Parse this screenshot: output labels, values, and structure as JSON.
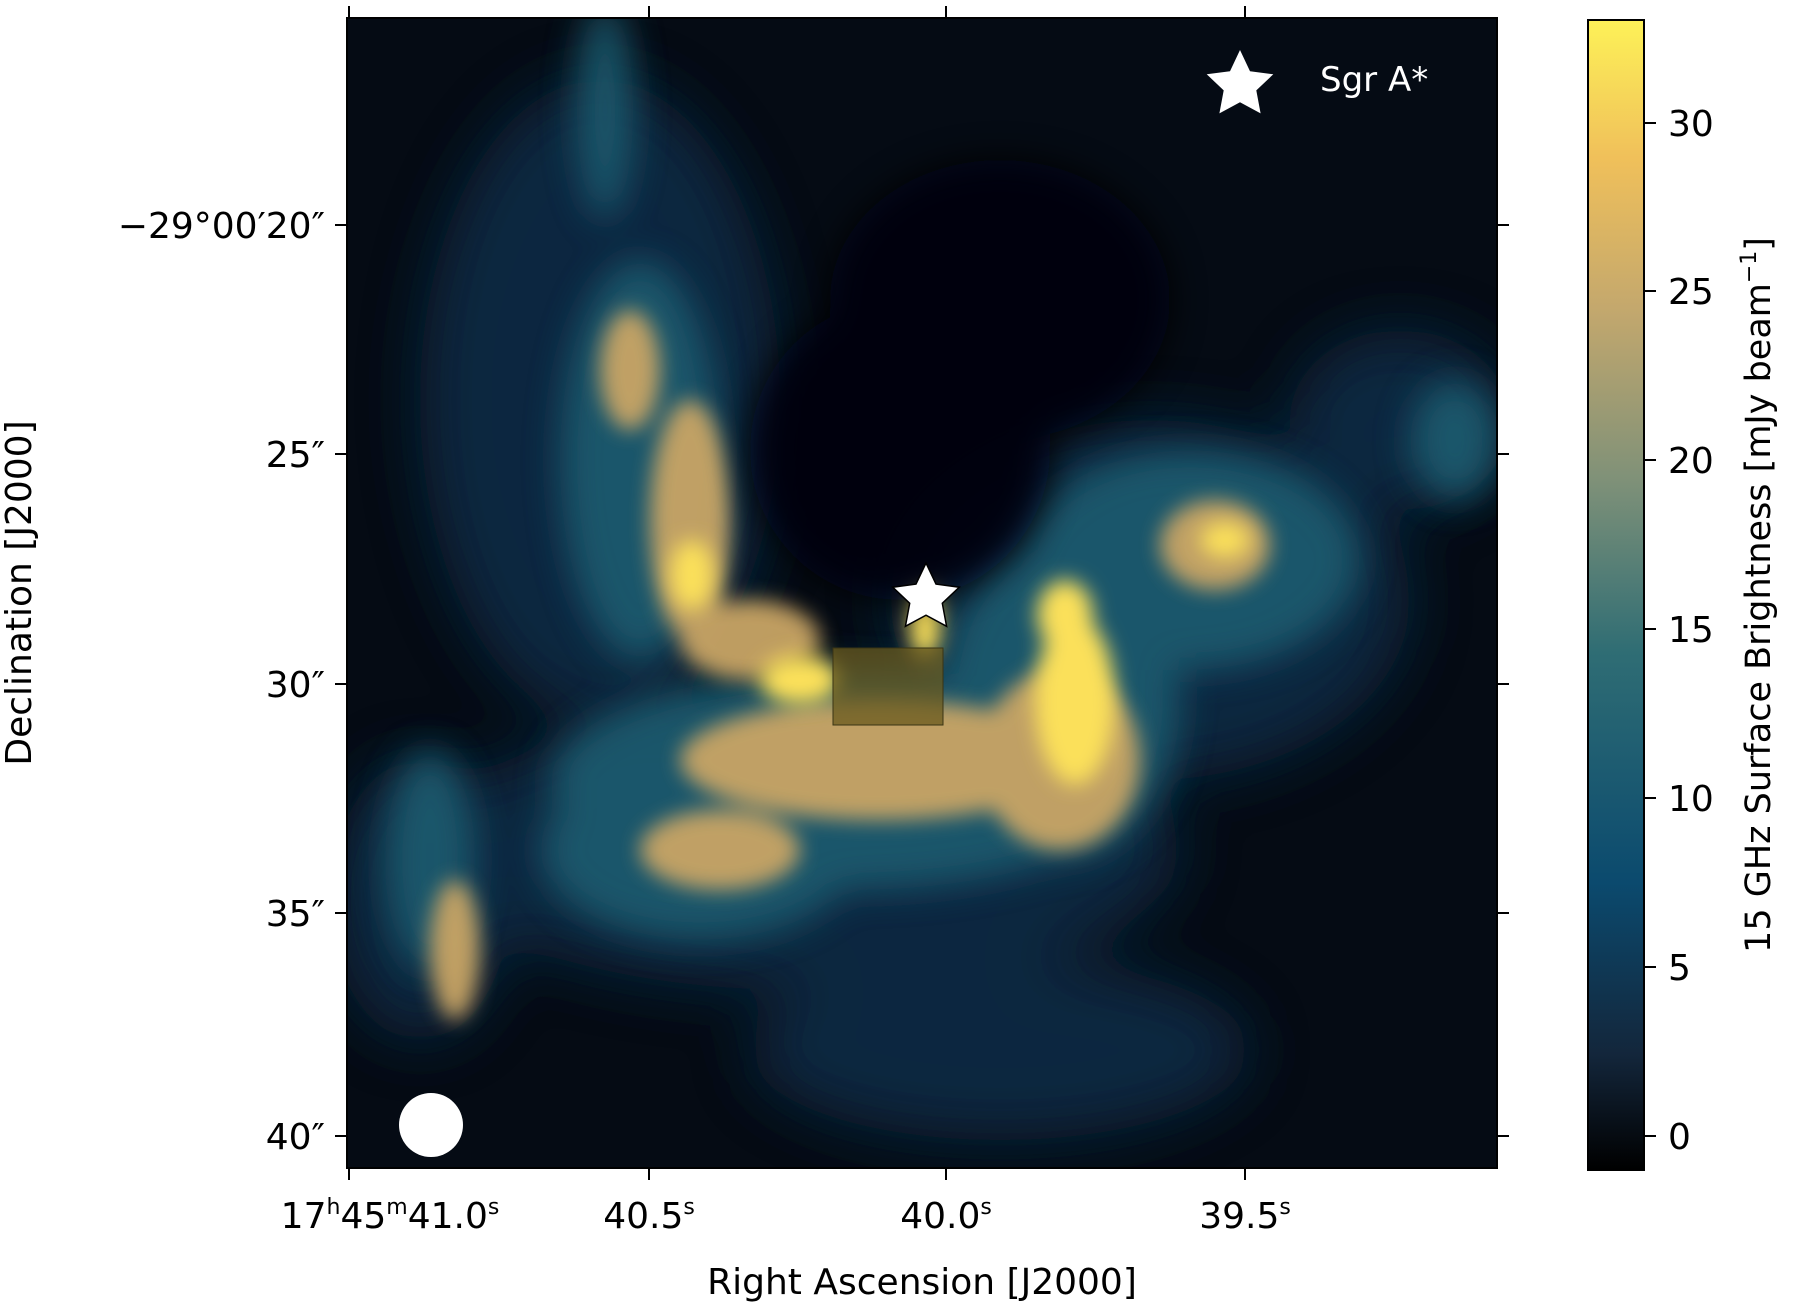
{
  "image": {
    "ra_axis": {
      "title": "Right Ascension [J2000]",
      "ticks": [
        {
          "label": "17h45m41.0s",
          "h": "17",
          "m": "45",
          "s": "41.0"
        },
        {
          "label": "40.5s",
          "s": "40.5"
        },
        {
          "label": "40.0s",
          "s": "40.0"
        },
        {
          "label": "39.5s",
          "s": "39.5"
        }
      ]
    },
    "dec_axis": {
      "title": "Declination [J2000]",
      "ticks": [
        "−29°00′20″",
        "25″",
        "30″",
        "35″",
        "40″"
      ]
    },
    "legend": {
      "marker": "star",
      "label": "Sgr A*"
    },
    "beam_marker": "circle",
    "highlight_box": "rectangle",
    "map_colors": [
      "#000000",
      "#0c1a2b",
      "#0f4466",
      "#2f6f75",
      "#8c9a7a",
      "#d2b06a",
      "#f0be58",
      "#fdf158"
    ]
  },
  "colorbar": {
    "label": "15 GHz Surface Brightness [mJy beam",
    "label_exponent": "−1",
    "label_close": "]",
    "range": [
      -1,
      33
    ],
    "ticks": [
      "0",
      "5",
      "10",
      "15",
      "20",
      "25",
      "30"
    ],
    "colors": [
      "#000000",
      "#13263b",
      "#0b4a6e",
      "#2f6d74",
      "#7f9178",
      "#c4a86d",
      "#f0c05a",
      "#fdf158"
    ]
  }
}
